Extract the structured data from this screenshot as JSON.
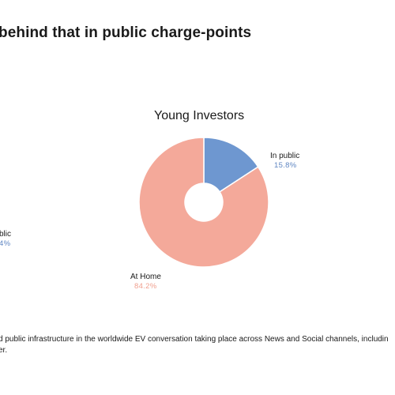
{
  "headline": "behind that in public charge-points",
  "left_chart_fragment": {
    "label": "blic",
    "value": "4%"
  },
  "chart_data": {
    "type": "pie",
    "title": "Young Investors",
    "donut": true,
    "categories": [
      "In public",
      "At Home"
    ],
    "values": [
      15.8,
      84.2
    ],
    "value_labels": [
      "15.8%",
      "84.2%"
    ],
    "colors": [
      "#6e97d0",
      "#f4a99a"
    ]
  },
  "footnote": {
    "line1": "d public infrastructure in the worldwide EV conversation taking place across News and Social channels, includin",
    "line2": "er."
  }
}
